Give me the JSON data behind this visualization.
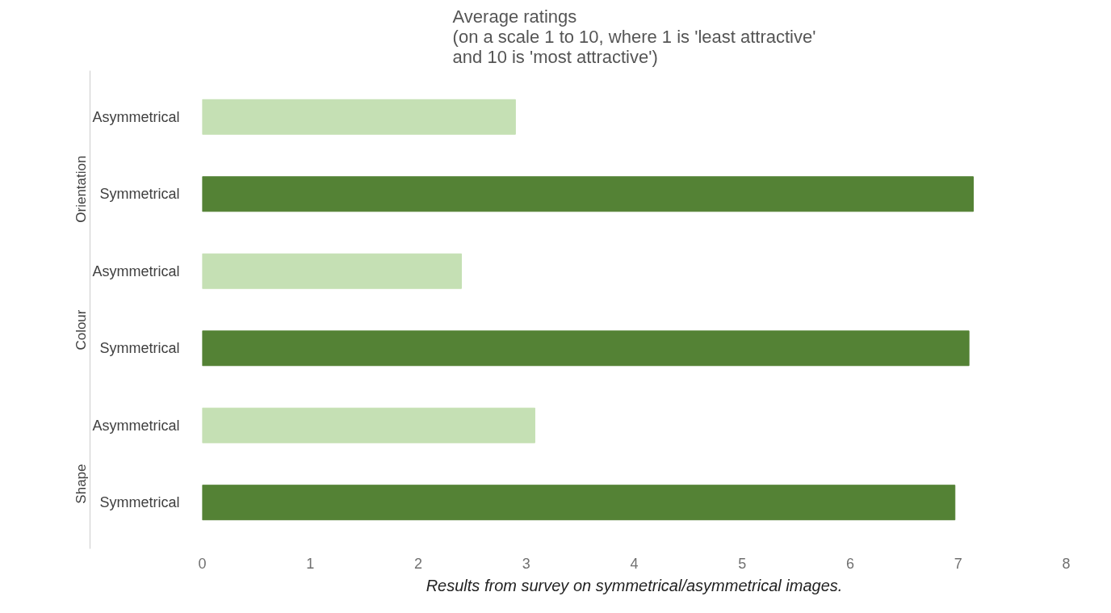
{
  "chart_data": {
    "type": "bar",
    "orientation": "horizontal",
    "title": "Average ratings\n(on a scale 1 to 10, where 1 is 'least attractive'\nand 10 is 'most attractive')",
    "categories": [
      "Asymmetrical",
      "Symmetrical",
      "Asymmetrical",
      "Symmetrical",
      "Asymmetrical",
      "Symmetrical"
    ],
    "values": [
      2.9,
      7.14,
      2.4,
      7.1,
      3.08,
      6.97
    ],
    "colors": [
      "#c5e0b4",
      "#548235",
      "#c5e0b4",
      "#548235",
      "#c5e0b4",
      "#548235"
    ],
    "xlim": [
      0,
      8
    ],
    "xticks": [
      0,
      1,
      2,
      3,
      4,
      5,
      6,
      7,
      8
    ],
    "grid": false,
    "annotations": [
      "Orientation",
      "Colour",
      "Shape",
      "Results from survey on symmetrical/asymmetrical images."
    ]
  }
}
